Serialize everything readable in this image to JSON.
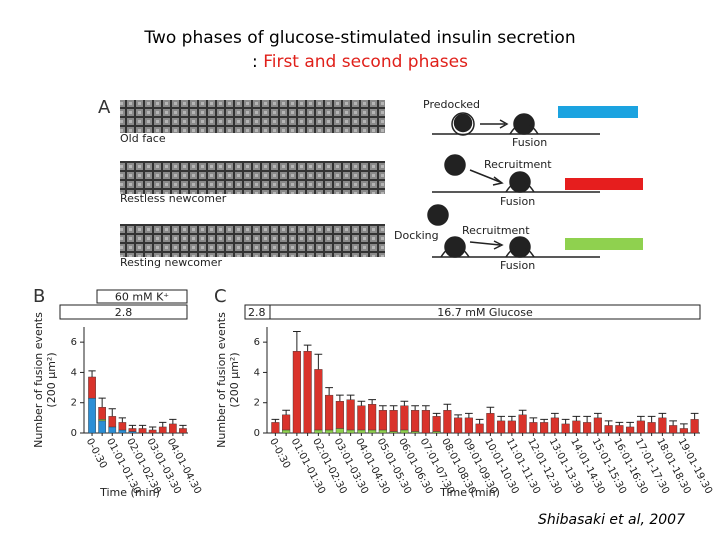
{
  "header": {
    "title": "Two phases of glucose-stimulated insulin secretion",
    "subtitle_prefix": ":",
    "subtitle_highlight": "First and second phases"
  },
  "panel_a": {
    "letter": "A",
    "rows": [
      "Old face",
      "Restless newcomer",
      "Resting newcomer"
    ]
  },
  "diagram": {
    "rows": [
      {
        "labels": [
          "Predocked",
          "Fusion"
        ],
        "color": "#1ba3e0"
      },
      {
        "labels": [
          "Recruitment",
          "Fusion"
        ],
        "color": "#e61e1e"
      },
      {
        "labels": [
          "Docking",
          "Recruitment",
          "Fusion"
        ],
        "color": "#8fd14f"
      }
    ]
  },
  "citation": "Shibasaki et al, 2007",
  "chart_data": [
    {
      "type": "bar",
      "letter": "B",
      "stacked": true,
      "annotations": [
        "60 mM K⁺",
        "2.8"
      ],
      "ylabel": "Number of fusion events",
      "ylabel_unit": "(200 μm²)",
      "xlabel": "Time (min)",
      "categories": [
        "0-0:30",
        null,
        "01:01-01:30",
        null,
        "02:01-02:30",
        null,
        "03:01-03:30",
        null,
        "04:01-04:30",
        null
      ],
      "series": [
        {
          "color": "#2b8fd6",
          "values": [
            2.3,
            0.8,
            0.4,
            0.2,
            0.1,
            0,
            0,
            0,
            0,
            0
          ]
        },
        {
          "color": "#8fd14f",
          "values": [
            0,
            0.1,
            0,
            0,
            0,
            0,
            0,
            0,
            0,
            0
          ]
        },
        {
          "color": "#d9332b",
          "values": [
            1.4,
            0.8,
            0.7,
            0.5,
            0.2,
            0.3,
            0.2,
            0.4,
            0.6,
            0.3
          ]
        }
      ],
      "errors": [
        0.4,
        0.6,
        0.5,
        0.3,
        0.2,
        0.2,
        0.2,
        0.3,
        0.3,
        0.2
      ],
      "ylim": [
        0,
        7
      ],
      "yticks": [
        0,
        2,
        4,
        6
      ]
    },
    {
      "type": "bar",
      "letter": "C",
      "stacked": true,
      "annotations": [
        "2.8",
        "16.7 mM Glucose"
      ],
      "ylabel": "Number of fusion events",
      "ylabel_unit": "(200 μm²)",
      "xlabel": "Time (min)",
      "categories": [
        "0-0:30",
        null,
        "01:01-01:30",
        null,
        "02:01-02:30",
        null,
        "03:01-03:30",
        null,
        "04:01-04:30",
        null,
        "05:01-05:30",
        null,
        "06:01-06:30",
        null,
        "07:01-07:30",
        null,
        "08:01-08:30",
        null,
        "09:01-09:30",
        null,
        "10:01-10:30",
        null,
        "11:01-11:30",
        null,
        "12:01-12:30",
        null,
        "13:01-13:30",
        null,
        "14:01-14:30",
        null,
        "15:01-15:30",
        null,
        "16:01-16:30",
        null,
        "17:01-17:30",
        null,
        "18:01-18:30",
        null,
        "19:01-19:30",
        null
      ],
      "series": [
        {
          "color": "#8fd14f",
          "values": [
            0,
            0.2,
            0,
            0,
            0.2,
            0.2,
            0.3,
            0.2,
            0.2,
            0.2,
            0.2,
            0.1,
            0.2,
            0.1,
            0,
            0.1,
            0,
            0,
            0,
            0,
            0,
            0,
            0,
            0,
            0,
            0,
            0,
            0,
            0,
            0,
            0,
            0,
            0,
            0,
            0,
            0,
            0,
            0,
            0,
            0
          ]
        },
        {
          "color": "#d9332b",
          "values": [
            0.7,
            1.0,
            5.4,
            5.4,
            4.0,
            2.3,
            1.8,
            2.0,
            1.6,
            1.7,
            1.3,
            1.4,
            1.6,
            1.4,
            1.5,
            1.0,
            1.5,
            1.0,
            1.0,
            0.6,
            1.3,
            0.8,
            0.8,
            1.2,
            0.7,
            0.7,
            1.0,
            0.6,
            0.8,
            0.7,
            1.0,
            0.5,
            0.5,
            0.4,
            0.8,
            0.7,
            1.0,
            0.5,
            0.3,
            0.9
          ]
        }
      ],
      "errors": [
        0.2,
        0.3,
        1.3,
        0.4,
        1.0,
        0.5,
        0.4,
        0.3,
        0.3,
        0.3,
        0.3,
        0.3,
        0.3,
        0.3,
        0.3,
        0.2,
        0.4,
        0.2,
        0.3,
        0.3,
        0.4,
        0.3,
        0.3,
        0.3,
        0.3,
        0.2,
        0.3,
        0.3,
        0.3,
        0.4,
        0.3,
        0.3,
        0.2,
        0.3,
        0.3,
        0.4,
        0.3,
        0.3,
        0.3,
        0.4
      ],
      "ylim": [
        0,
        7
      ],
      "yticks": [
        0,
        2,
        4,
        6
      ]
    }
  ]
}
